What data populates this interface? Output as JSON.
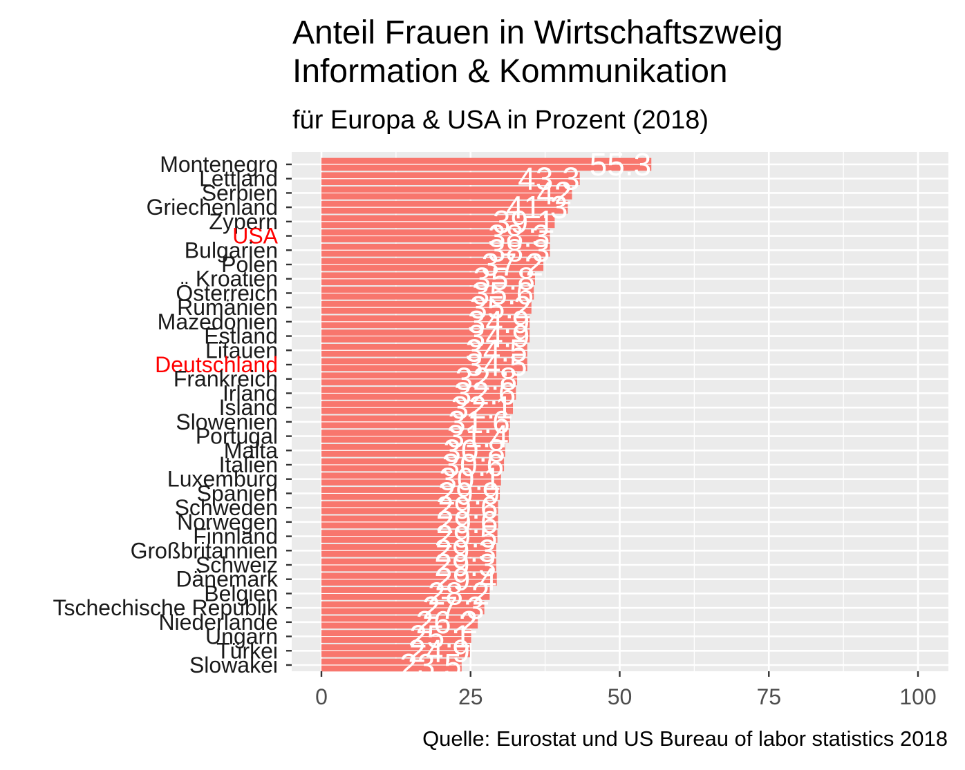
{
  "chart_data": {
    "type": "bar",
    "orientation": "horizontal",
    "title_lines": [
      "Anteil Frauen in Wirtschaftszweig",
      "Information & Kommunikation"
    ],
    "subtitle": "für Europa & USA in Prozent (2018)",
    "caption": "Quelle: Eurostat und US Bureau of labor statistics 2018",
    "xlim": [
      0,
      100
    ],
    "x_ticks": [
      "0",
      "25",
      "50",
      "75",
      "100"
    ],
    "x_tick_values": [
      0,
      25,
      50,
      75,
      100
    ],
    "grid": true,
    "legend": "none",
    "bar_color": "#F8766D",
    "panel_color": "#EBEBEB",
    "label_color": "#FFFFFF",
    "highlight_color": "#FF0000",
    "highlighted_categories": [
      "USA",
      "Deutschland"
    ],
    "categories": [
      "Montenegro",
      "Lettland",
      "Serbien",
      "Griechenland",
      "Zypern",
      "USA",
      "Bulgarien",
      "Polen",
      "Kroatien",
      "Österreich",
      "Rumänien",
      "Mazedonien",
      "Estland",
      "Litauen",
      "Deutschland",
      "Frankreich",
      "Irland",
      "Island",
      "Slowenien",
      "Portugal",
      "Malta",
      "Italien",
      "Luxemburg",
      "Spanien",
      "Schweden",
      "Norwegen",
      "Finnland",
      "Großbritannien",
      "Schweiz",
      "Dänemark",
      "Belgien",
      "Tschechische Republik",
      "Niederlande",
      "Ungarn",
      "Türkei",
      "Slowakei"
    ],
    "values": [
      55.3,
      43.3,
      42,
      41.3,
      39.1,
      38.3,
      38.3,
      37.2,
      35.8,
      35.6,
      35.2,
      34.9,
      34.9,
      34.5,
      34.5,
      32.8,
      32.6,
      32.1,
      31.6,
      31.4,
      30.8,
      30.6,
      30.1,
      29.9,
      29.6,
      29.6,
      29.5,
      29.3,
      29.3,
      29.4,
      28.2,
      27.3,
      26.2,
      25.1,
      24.9,
      23.5
    ],
    "data_labels": [
      "55.3",
      "43.3",
      "42",
      "41.3",
      "39.1",
      "38.3",
      "38.3",
      "37.2",
      "35.8",
      "35.6",
      "35.2",
      "34.9",
      "34.9",
      "34.5",
      "34.5",
      "32.8",
      "32.6",
      "32.1",
      "31.6",
      "31.4",
      "30.8",
      "30.6",
      "30.1",
      "29.9",
      "29.6",
      "29.6",
      "29.5",
      "29.3",
      "29.3",
      "29.4",
      "28.2",
      "27.3",
      "26.2",
      "25.1",
      "24.9",
      "23.5"
    ]
  }
}
